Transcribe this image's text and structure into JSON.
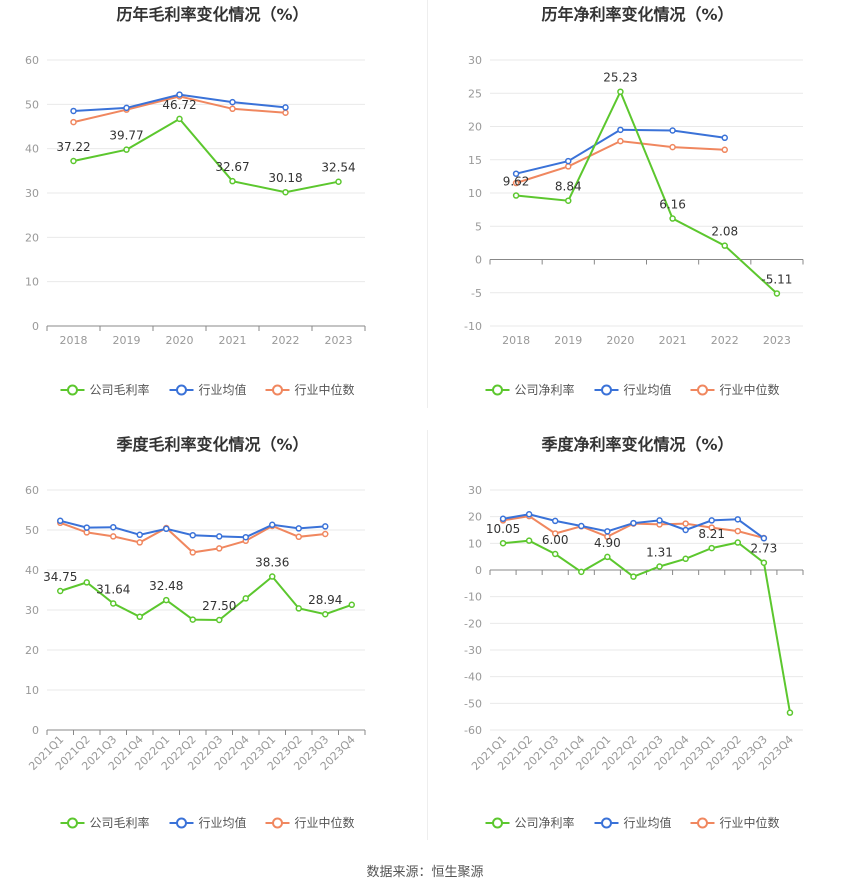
{
  "source": "数据来源：恒生聚源",
  "legend_labels": {
    "industry_avg": "行业均值",
    "industry_median": "行业中位数"
  },
  "colors": {
    "company": "#5cc72e",
    "avg": "#3a72d8",
    "median": "#f0875f",
    "grid": "#e9e9e9",
    "axis": "#999999",
    "text": "#333333"
  },
  "chart_data": [
    {
      "type": "line",
      "title": "历年毛利率变化情况（%）",
      "categories": [
        "2018",
        "2019",
        "2020",
        "2021",
        "2022",
        "2023"
      ],
      "ylim": [
        0,
        60
      ],
      "ystep": 10,
      "grid": true,
      "legend": "bottom",
      "series": [
        {
          "name": "公司毛利率",
          "key": "company",
          "values": [
            37.22,
            39.77,
            46.72,
            32.67,
            30.18,
            32.54
          ],
          "labels": [
            "37.22",
            "39.77",
            "46.72",
            "32.67",
            "30.18",
            "32.54"
          ]
        },
        {
          "name": "行业均值",
          "key": "avg",
          "values": [
            48.5,
            49.2,
            52.2,
            50.5,
            49.3,
            null
          ]
        },
        {
          "name": "行业中位数",
          "key": "median",
          "values": [
            46.0,
            48.8,
            51.8,
            49.0,
            48.1,
            null
          ]
        }
      ]
    },
    {
      "type": "line",
      "title": "历年净利率变化情况（%）",
      "categories": [
        "2018",
        "2019",
        "2020",
        "2021",
        "2022",
        "2023"
      ],
      "ylim": [
        -10,
        30
      ],
      "ystep": 5,
      "grid": true,
      "legend": "bottom",
      "series": [
        {
          "name": "公司净利率",
          "key": "company",
          "values": [
            9.62,
            8.84,
            25.23,
            6.16,
            2.08,
            -5.11
          ],
          "labels": [
            "9.62",
            "8.84",
            "25.23",
            "6.16",
            "2.08",
            "-5.11"
          ]
        },
        {
          "name": "行业均值",
          "key": "avg",
          "values": [
            12.9,
            14.8,
            19.5,
            19.4,
            18.3,
            null
          ]
        },
        {
          "name": "行业中位数",
          "key": "median",
          "values": [
            11.5,
            14.0,
            17.8,
            16.9,
            16.5,
            null
          ]
        }
      ]
    },
    {
      "type": "line",
      "title": "季度毛利率变化情况（%）",
      "categories": [
        "2021Q1",
        "2021Q2",
        "2021Q3",
        "2021Q4",
        "2022Q1",
        "2022Q2",
        "2022Q3",
        "2022Q4",
        "2023Q1",
        "2023Q2",
        "2023Q3",
        "2023Q4"
      ],
      "ylim": [
        0,
        60
      ],
      "ystep": 10,
      "grid": true,
      "legend": "bottom",
      "series": [
        {
          "name": "公司毛利率",
          "key": "company",
          "values": [
            34.75,
            36.9,
            31.64,
            28.3,
            32.48,
            27.6,
            27.5,
            32.9,
            38.36,
            30.4,
            28.94,
            31.3
          ],
          "labels": [
            "34.75",
            "",
            "31.64",
            "",
            "32.48",
            "",
            "27.50",
            "",
            "38.36",
            "",
            "28.94",
            ""
          ]
        },
        {
          "name": "行业均值",
          "key": "avg",
          "values": [
            52.3,
            50.6,
            50.7,
            48.8,
            50.3,
            48.7,
            48.4,
            48.2,
            51.3,
            50.4,
            50.9,
            null
          ]
        },
        {
          "name": "行业中位数",
          "key": "median",
          "values": [
            51.8,
            49.4,
            48.4,
            46.9,
            50.5,
            44.4,
            45.4,
            47.3,
            51.0,
            48.3,
            49.0,
            null
          ]
        }
      ]
    },
    {
      "type": "line",
      "title": "季度净利率变化情况（%）",
      "categories": [
        "2021Q1",
        "2021Q2",
        "2021Q3",
        "2021Q4",
        "2022Q1",
        "2022Q2",
        "2022Q3",
        "2022Q4",
        "2023Q1",
        "2023Q2",
        "2023Q3",
        "2023Q4"
      ],
      "ylim": [
        -60,
        30
      ],
      "ystep": 10,
      "grid": true,
      "legend": "bottom",
      "series": [
        {
          "name": "公司净利率",
          "key": "company",
          "values": [
            10.05,
            11.0,
            6.0,
            -0.7,
            4.9,
            -2.5,
            1.31,
            4.2,
            8.21,
            10.3,
            2.73,
            -53.5
          ],
          "labels": [
            "10.05",
            "",
            "6.00",
            "",
            "4.90",
            "",
            "1.31",
            "",
            "8.21",
            "",
            "2.73",
            ""
          ]
        },
        {
          "name": "行业均值",
          "key": "avg",
          "values": [
            19.2,
            20.9,
            18.4,
            16.5,
            14.5,
            17.6,
            18.6,
            15.0,
            18.6,
            19.0,
            11.9,
            null
          ]
        },
        {
          "name": "行业中位数",
          "key": "median",
          "values": [
            18.6,
            20.2,
            13.7,
            16.4,
            12.5,
            17.4,
            17.1,
            17.4,
            15.9,
            14.6,
            12.0,
            null
          ]
        }
      ]
    }
  ]
}
